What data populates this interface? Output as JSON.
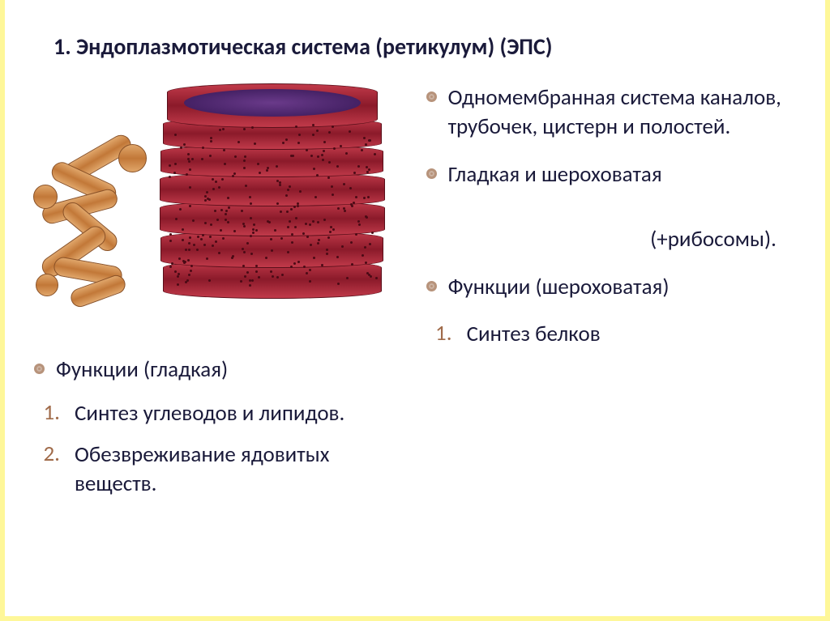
{
  "title": "1. Эндоплазмотическая система (ретикулум) (ЭПС)",
  "illustration": {
    "description_rough": "Rough ER — stacked red/crimson flattened cisternae with ribosomes on surface, top cisterna with purple lumen",
    "description_smooth": "Smooth ER — interconnected tan/light-brown branching tubules at lower left",
    "colors": {
      "rough_er_fill_light": "#c13a4a",
      "rough_er_fill_dark": "#8b1a2a",
      "rough_er_border": "#5a0f1a",
      "lumen_center": "#6a3a8a",
      "lumen_edge": "#3a1a5a",
      "ribosome": "#4a0a15",
      "smooth_er_fill_light": "#e0a66a",
      "smooth_er_fill_dark": "#c27838",
      "smooth_er_border": "#8a5228"
    }
  },
  "left": {
    "heading": "Функции (гладкая)",
    "items": [
      {
        "n": "1.",
        "text": "Синтез углеводов и липидов."
      },
      {
        "n": "2.",
        "text": "Обезвреживание ядовитых веществ."
      }
    ]
  },
  "right": {
    "bullets": [
      "Одномембранная система каналов, трубочек, цистерн и полостей.",
      "Гладкая и шероховатая"
    ],
    "ribo_note": "(+рибосомы).",
    "heading_lower": "Функции (шероховатая)",
    "items_lower": [
      {
        "n": "1.",
        "text": "Синтез белков"
      }
    ]
  },
  "style": {
    "title_fontsize": 28,
    "body_fontsize": 27,
    "title_color": "#1a1a3a",
    "body_color": "#1a1a3a",
    "bullet_dot_color": "#b7937b",
    "number_color": "#a06b4a",
    "frame_color": "#fef799",
    "background": "#ffffff"
  }
}
